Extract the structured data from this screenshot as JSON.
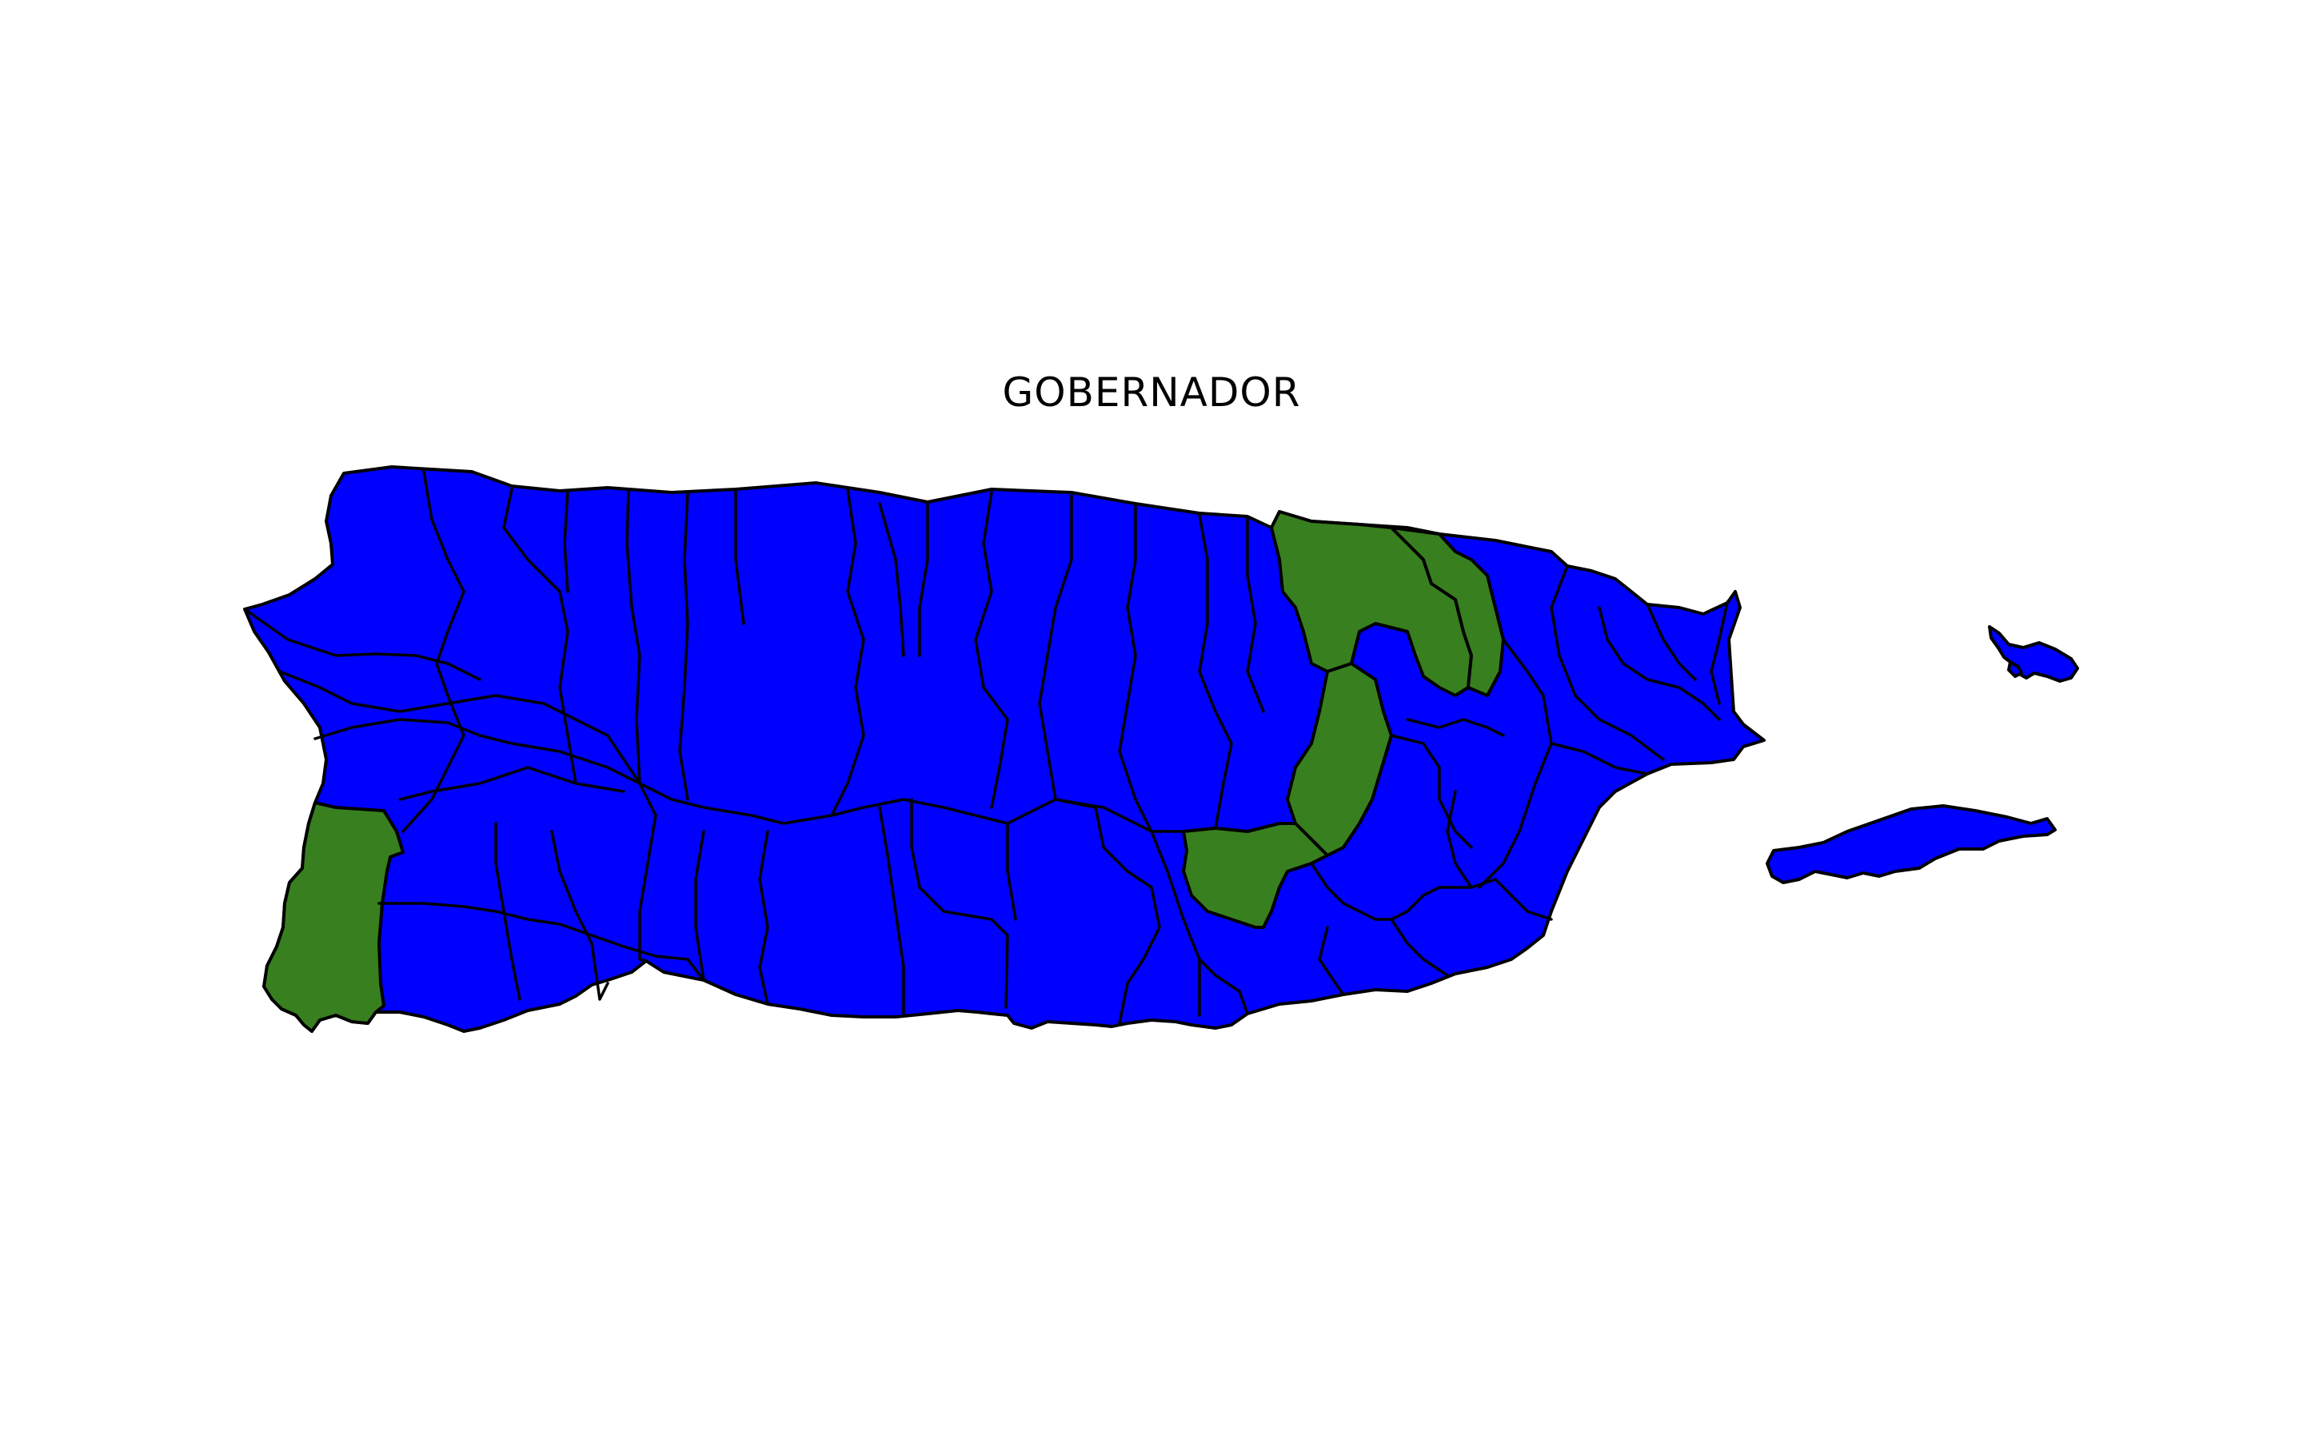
{
  "title": "GOBERNADOR",
  "colors": {
    "party_majority": "#0000ff",
    "party_minority": "#387f1f",
    "outline": "#000000",
    "background": "#ffffff"
  },
  "regions": {
    "main_island_fill": "party_majority",
    "vieques_fill": "party_majority",
    "culebra_fill": "party_majority",
    "green_municipalities_count": 5
  }
}
